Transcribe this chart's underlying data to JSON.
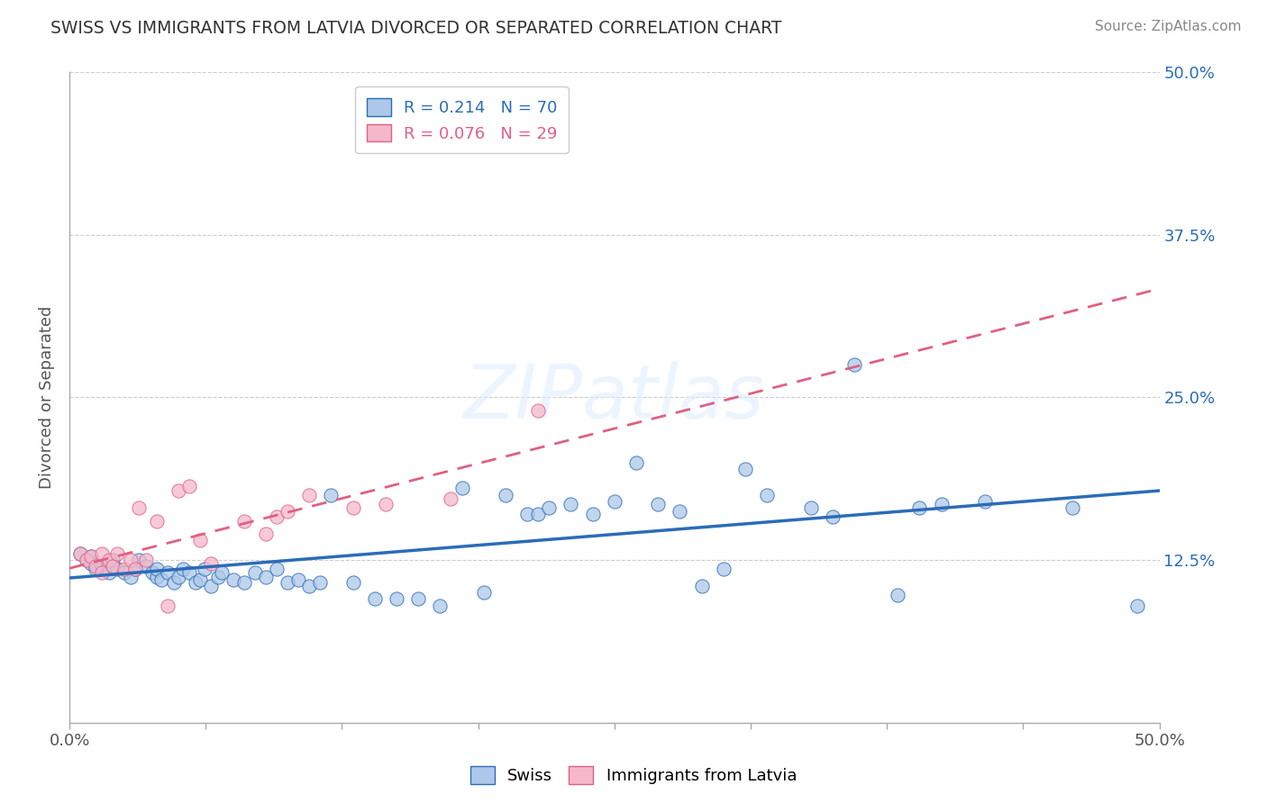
{
  "title": "SWISS VS IMMIGRANTS FROM LATVIA DIVORCED OR SEPARATED CORRELATION CHART",
  "source_text": "Source: ZipAtlas.com",
  "ylabel": "Divorced or Separated",
  "xlim": [
    0.0,
    0.5
  ],
  "ylim": [
    0.0,
    0.5
  ],
  "ytick_positions": [
    0.0,
    0.125,
    0.25,
    0.375,
    0.5
  ],
  "ytick_labels_right": [
    "",
    "12.5%",
    "25.0%",
    "37.5%",
    "50.0%"
  ],
  "xtick_positions": [
    0.0,
    0.0625,
    0.125,
    0.1875,
    0.25,
    0.3125,
    0.375,
    0.4375,
    0.5
  ],
  "xtick_labels": [
    "0.0%",
    "",
    "",
    "",
    "",
    "",
    "",
    "",
    "50.0%"
  ],
  "swiss_color": "#adc8e8",
  "latvia_color": "#f5b8cb",
  "trend_swiss_color": "#2b6cb8",
  "trend_latvia_color": "#e06080",
  "legend_swiss_label": "R = 0.214   N = 70",
  "legend_latvia_label": "R = 0.076   N = 29",
  "watermark": "ZIPatlas",
  "swiss_x": [
    0.005,
    0.008,
    0.01,
    0.01,
    0.012,
    0.015,
    0.018,
    0.02,
    0.02,
    0.022,
    0.025,
    0.028,
    0.03,
    0.032,
    0.035,
    0.038,
    0.04,
    0.04,
    0.042,
    0.045,
    0.048,
    0.05,
    0.052,
    0.055,
    0.058,
    0.06,
    0.062,
    0.065,
    0.068,
    0.07,
    0.075,
    0.08,
    0.085,
    0.09,
    0.095,
    0.1,
    0.105,
    0.11,
    0.115,
    0.12,
    0.13,
    0.14,
    0.15,
    0.16,
    0.17,
    0.18,
    0.19,
    0.2,
    0.21,
    0.215,
    0.22,
    0.23,
    0.24,
    0.25,
    0.26,
    0.27,
    0.28,
    0.29,
    0.3,
    0.31,
    0.32,
    0.34,
    0.35,
    0.36,
    0.38,
    0.39,
    0.4,
    0.42,
    0.46,
    0.49
  ],
  "swiss_y": [
    0.13,
    0.125,
    0.128,
    0.122,
    0.118,
    0.12,
    0.115,
    0.12,
    0.125,
    0.118,
    0.115,
    0.112,
    0.118,
    0.125,
    0.12,
    0.115,
    0.112,
    0.118,
    0.11,
    0.115,
    0.108,
    0.112,
    0.118,
    0.115,
    0.108,
    0.11,
    0.118,
    0.105,
    0.112,
    0.115,
    0.11,
    0.108,
    0.115,
    0.112,
    0.118,
    0.108,
    0.11,
    0.105,
    0.108,
    0.175,
    0.108,
    0.095,
    0.095,
    0.095,
    0.09,
    0.18,
    0.1,
    0.175,
    0.16,
    0.16,
    0.165,
    0.168,
    0.16,
    0.17,
    0.2,
    0.168,
    0.162,
    0.105,
    0.118,
    0.195,
    0.175,
    0.165,
    0.158,
    0.275,
    0.098,
    0.165,
    0.168,
    0.17,
    0.165,
    0.09
  ],
  "latvia_x": [
    0.005,
    0.008,
    0.01,
    0.012,
    0.015,
    0.015,
    0.018,
    0.02,
    0.022,
    0.025,
    0.028,
    0.03,
    0.032,
    0.035,
    0.04,
    0.045,
    0.05,
    0.055,
    0.06,
    0.065,
    0.08,
    0.09,
    0.095,
    0.1,
    0.11,
    0.13,
    0.145,
    0.175,
    0.215
  ],
  "latvia_y": [
    0.13,
    0.125,
    0.128,
    0.12,
    0.13,
    0.115,
    0.125,
    0.12,
    0.13,
    0.118,
    0.125,
    0.118,
    0.165,
    0.125,
    0.155,
    0.09,
    0.178,
    0.182,
    0.14,
    0.122,
    0.155,
    0.145,
    0.158,
    0.162,
    0.175,
    0.165,
    0.168,
    0.172,
    0.24
  ]
}
